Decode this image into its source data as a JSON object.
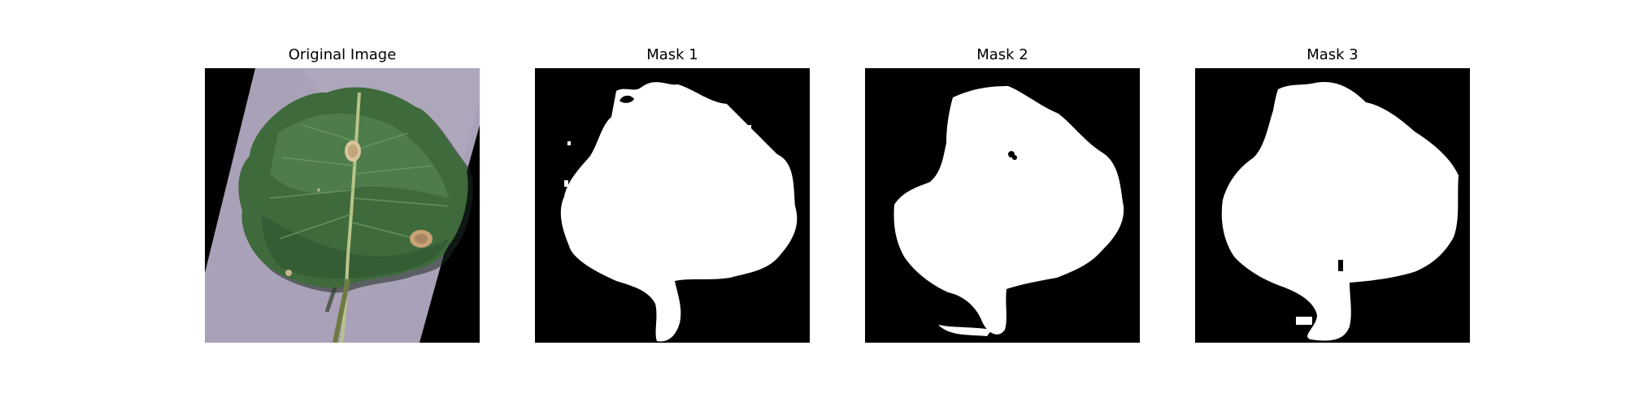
{
  "panels": [
    {
      "title": "Original Image",
      "kind": "photo",
      "subject": "leaf-photo"
    },
    {
      "title": "Mask 1",
      "kind": "mask",
      "subject": "leaf-mask"
    },
    {
      "title": "Mask 2",
      "kind": "mask",
      "subject": "leaf-mask"
    },
    {
      "title": "Mask 3",
      "kind": "mask",
      "subject": "leaf-mask"
    }
  ],
  "colors": {
    "background": "#ffffff",
    "mask_background": "#000000",
    "mask_foreground": "#ffffff",
    "leaf_green": "#3f6a3c",
    "paper_lilac": "#a9a1b7"
  }
}
